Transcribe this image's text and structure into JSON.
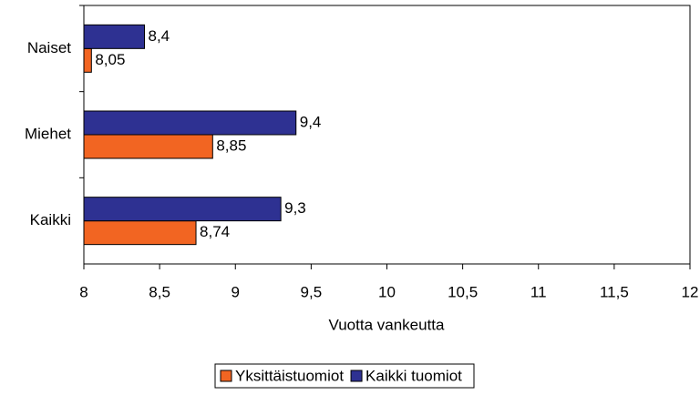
{
  "chart_data": {
    "type": "bar",
    "orientation": "horizontal",
    "categories": [
      "Naiset",
      "Miehet",
      "Kaikki"
    ],
    "series": [
      {
        "name": "Yksittäistuomiot",
        "color": "#f26522",
        "values": [
          8.05,
          8.85,
          8.74
        ],
        "value_labels": [
          "8,05",
          "8,85",
          "8,74"
        ]
      },
      {
        "name": "Kaikki tuomiot",
        "color": "#2e3192",
        "values": [
          8.4,
          9.4,
          9.3
        ],
        "value_labels": [
          "8,4",
          "9,4",
          "9,3"
        ]
      }
    ],
    "xlabel": "Vuotta vankeutta",
    "xlim": [
      8,
      12
    ],
    "xticks": [
      8,
      {
        "value": 8.5,
        "label": "8,5"
      },
      9,
      {
        "value": 9.5,
        "label": "9,5"
      },
      10,
      {
        "value": 10.5,
        "label": "10,5"
      },
      11,
      {
        "value": 11.5,
        "label": "11,5"
      },
      12
    ],
    "grid": false,
    "legend": "bottom"
  }
}
